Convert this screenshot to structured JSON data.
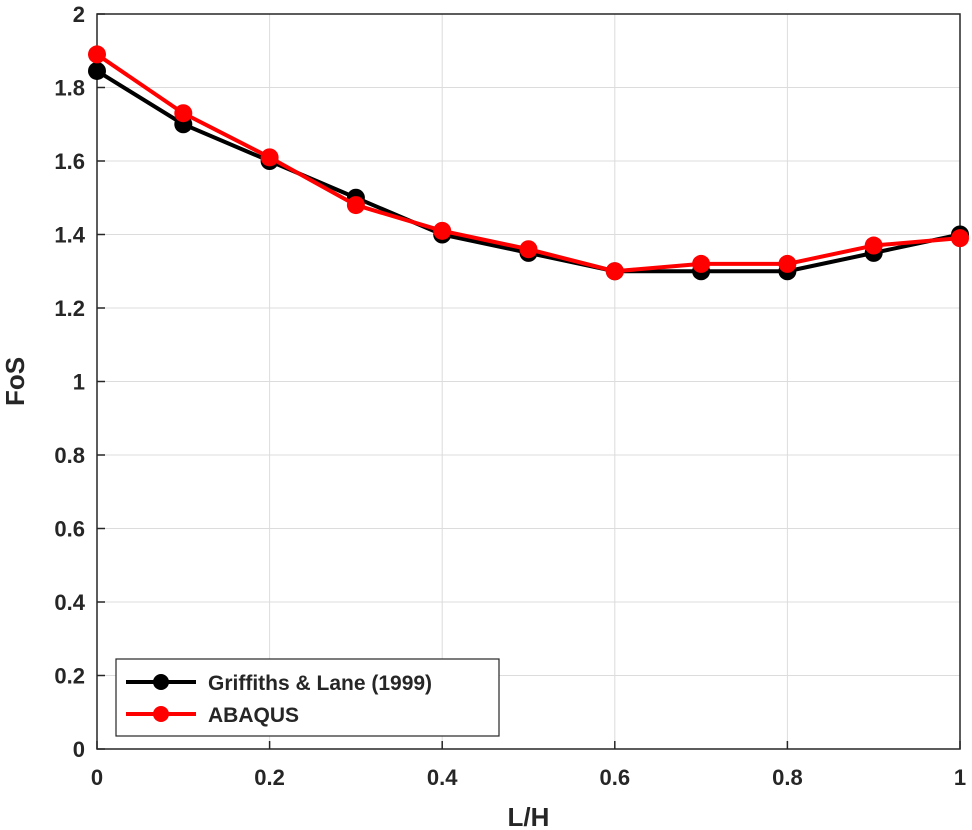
{
  "chart_data": {
    "type": "line",
    "title": "",
    "xlabel": "L/H",
    "ylabel": "FoS",
    "xlim": [
      0,
      1
    ],
    "ylim": [
      0,
      2
    ],
    "grid": true,
    "xticks": [
      0,
      0.2,
      0.4,
      0.6,
      0.8,
      1
    ],
    "xtick_labels": [
      "0",
      "0.2",
      "0.4",
      "0.6",
      "0.8",
      "1"
    ],
    "yticks": [
      0,
      0.2,
      0.4,
      0.6,
      0.8,
      1,
      1.2,
      1.4,
      1.6,
      1.8,
      2
    ],
    "ytick_labels": [
      "0",
      "0.2",
      "0.4",
      "0.6",
      "0.8",
      "1",
      "1.2",
      "1.4",
      "1.6",
      "1.8",
      "2"
    ],
    "x": [
      0,
      0.1,
      0.2,
      0.3,
      0.4,
      0.5,
      0.6,
      0.7,
      0.8,
      0.9,
      1.0
    ],
    "series": [
      {
        "name": "Griffiths & Lane (1999)",
        "color": "#000000",
        "values": [
          1.845,
          1.7,
          1.6,
          1.5,
          1.4,
          1.35,
          1.3,
          1.3,
          1.3,
          1.35,
          1.4
        ]
      },
      {
        "name": "ABAQUS",
        "color": "#ff0000",
        "values": [
          1.89,
          1.73,
          1.61,
          1.48,
          1.41,
          1.36,
          1.3,
          1.32,
          1.32,
          1.37,
          1.39
        ]
      }
    ],
    "legend_position": "bottom-left"
  }
}
